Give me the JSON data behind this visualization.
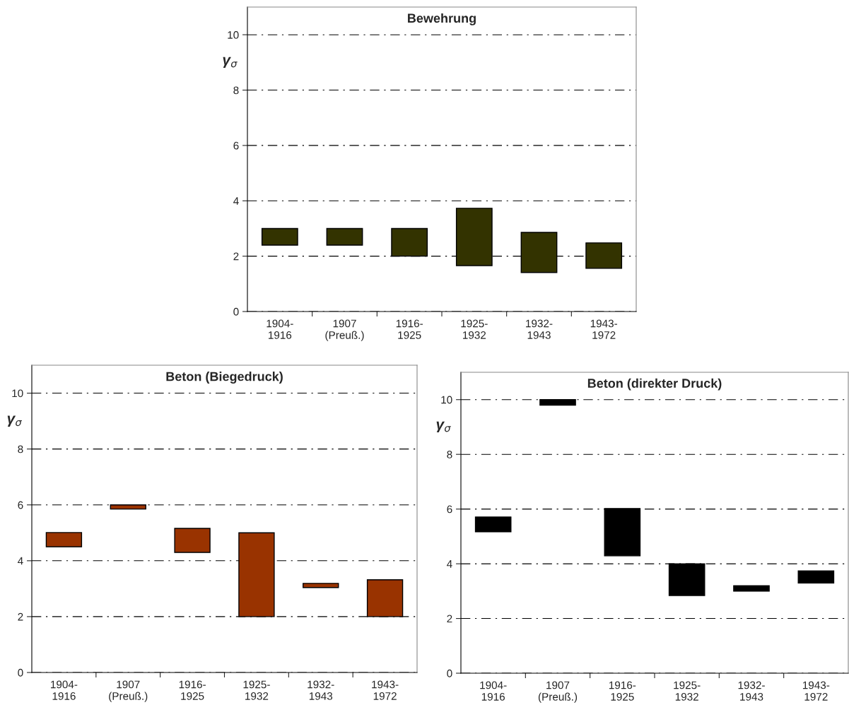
{
  "chart_data": [
    {
      "type": "bar",
      "title": "Bewehrung",
      "ylabel": "γ$_{σ}$",
      "categories": [
        "1904-\n1916",
        "1907\n(Preuß.)",
        "1916-\n1925",
        "1925-\n1932",
        "1932-\n1943",
        "1943-\n1972"
      ],
      "base": [
        2.4,
        2.4,
        2.0,
        1.66,
        1.41,
        1.56
      ],
      "values": [
        0.6,
        0.6,
        1.0,
        2.07,
        1.45,
        0.92
      ],
      "color": "#333300",
      "ylim": [
        0,
        11
      ],
      "yticks": [
        0,
        2,
        4,
        6,
        8,
        10
      ],
      "grid": "y",
      "line_style": "dashed"
    },
    {
      "type": "bar",
      "title": "Beton (Biegedruck)",
      "ylabel": "γ$_{σ}$",
      "categories": [
        "1904-\n1916",
        "1907\n(Preuß.)",
        "1916-\n1925",
        "1925-\n1932",
        "1932-\n1943",
        "1943-\n1972"
      ],
      "base": [
        4.5,
        5.85,
        4.3,
        2.0,
        3.04,
        2.0
      ],
      "values": [
        0.51,
        0.15,
        0.86,
        3.0,
        0.15,
        1.32
      ],
      "color": "#993300",
      "ylim": [
        0,
        11
      ],
      "yticks": [
        0,
        2,
        4,
        6,
        8,
        10
      ],
      "grid": "y",
      "line_style": "dashed"
    },
    {
      "type": "bar",
      "title": "Beton (direkter Druck)",
      "ylabel": "γ$_{σ}$",
      "categories": [
        "1904-\n1916",
        "1907\n(Preuß.)",
        "1916-\n1925",
        "1925-\n1932",
        "1932-\n1943",
        "1943-\n1972"
      ],
      "base": [
        5.17,
        9.8,
        4.29,
        2.84,
        3.0,
        3.3
      ],
      "values": [
        0.54,
        0.2,
        1.73,
        1.16,
        0.2,
        0.44
      ],
      "color": "#000000",
      "ylim": [
        0,
        11
      ],
      "yticks": [
        0,
        2,
        4,
        6,
        8,
        10
      ],
      "grid": "y",
      "line_style": "dashed"
    }
  ]
}
